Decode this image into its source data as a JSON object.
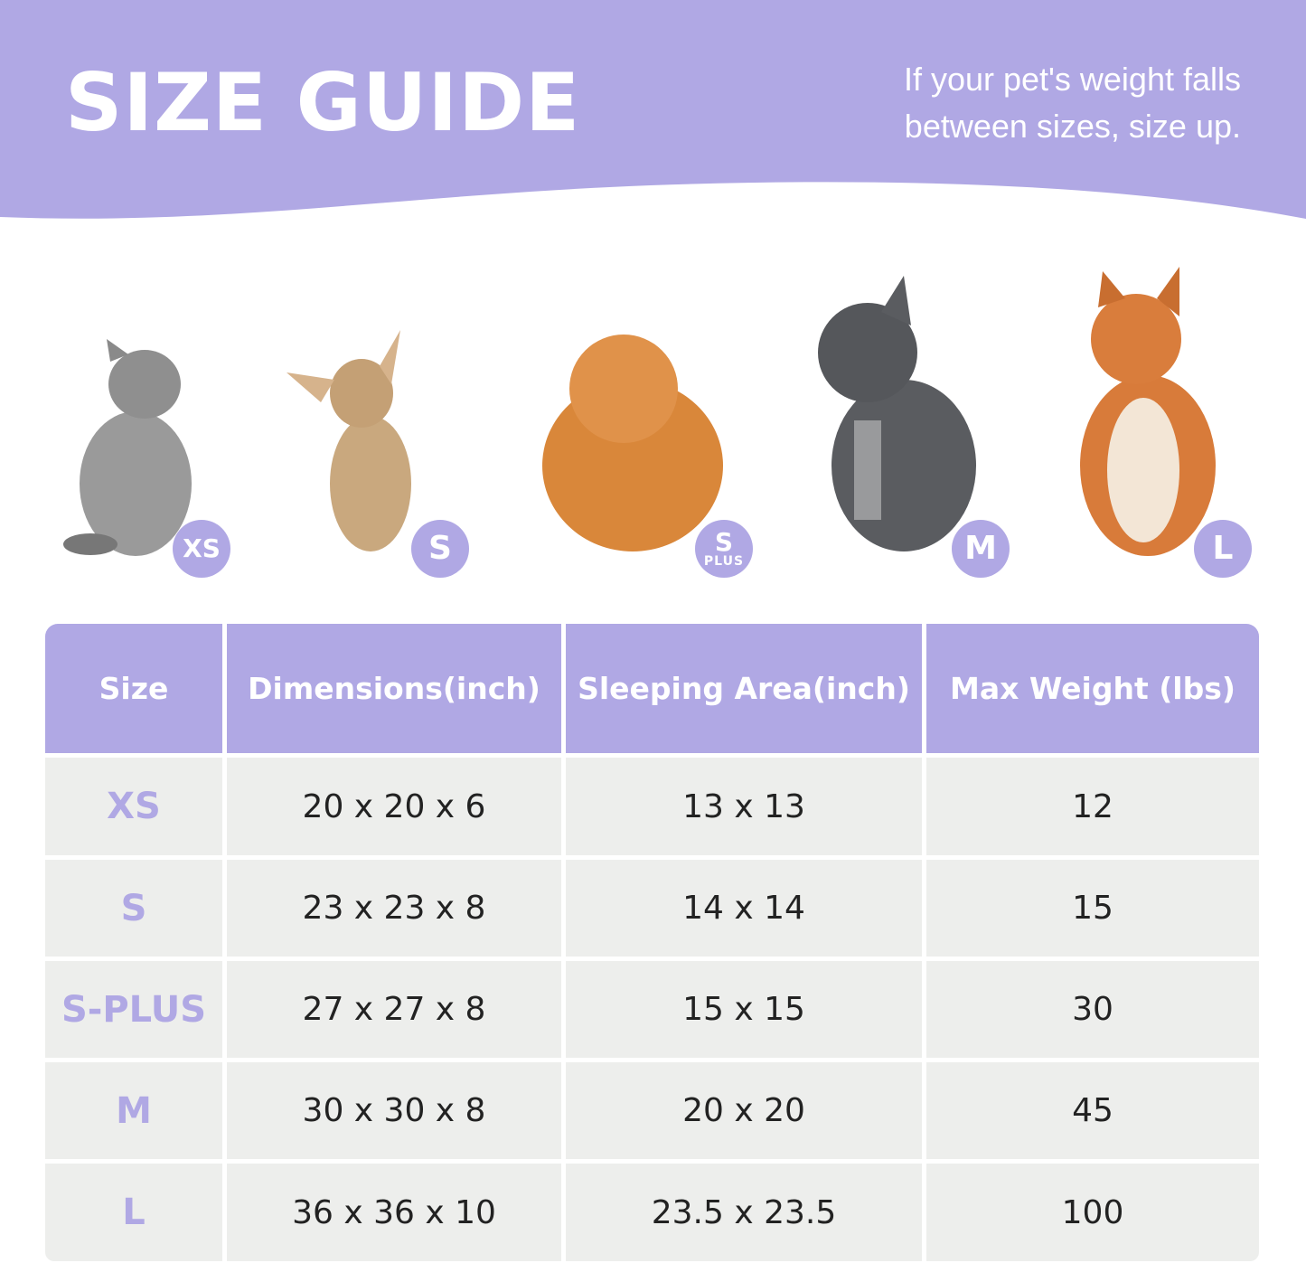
{
  "header": {
    "title": "SIZE GUIDE",
    "note_line1": "If your pet's weight falls",
    "note_line2": "between sizes, size up."
  },
  "colors": {
    "accent": "#b0a8e4",
    "row_bg": "#edeeec",
    "text": "#222222"
  },
  "pets": [
    {
      "animal": "gray cat",
      "badge": "XS"
    },
    {
      "animal": "chihuahua",
      "badge": "S"
    },
    {
      "animal": "pomeranian",
      "badge": "S",
      "badge_sub": "PLUS"
    },
    {
      "animal": "french bulldog",
      "badge": "M"
    },
    {
      "animal": "shiba inu",
      "badge": "L"
    }
  ],
  "table": {
    "headers": [
      "Size",
      "Dimensions(inch)",
      "Sleeping Area(inch)",
      "Max Weight (lbs)"
    ],
    "rows": [
      [
        "XS",
        "20 x 20 x 6",
        "13 x 13",
        "12"
      ],
      [
        "S",
        "23 x 23 x 8",
        "14 x 14",
        "15"
      ],
      [
        "S-PLUS",
        "27 x 27 x 8",
        "15 x 15",
        "30"
      ],
      [
        "M",
        "30 x 30 x 8",
        "20 x 20",
        "45"
      ],
      [
        "L",
        "36 x 36 x 10",
        "23.5 x 23.5",
        "100"
      ]
    ]
  }
}
